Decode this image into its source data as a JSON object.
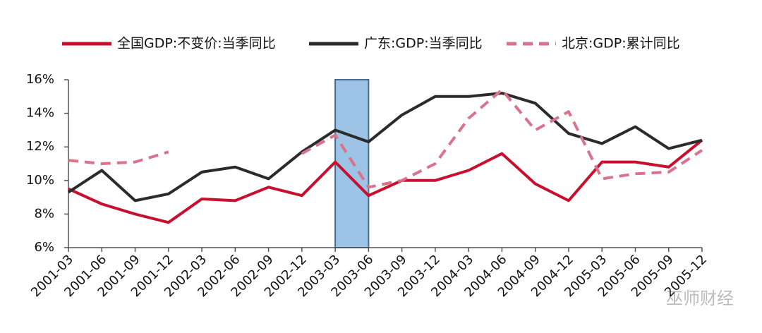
{
  "chart_data": {
    "type": "line",
    "categories": [
      "2001-03",
      "2001-06",
      "2001-09",
      "2001-12",
      "2002-03",
      "2002-06",
      "2002-09",
      "2002-12",
      "2003-03",
      "2003-06",
      "2003-09",
      "2003-12",
      "2004-03",
      "2004-06",
      "2004-09",
      "2004-12",
      "2005-03",
      "2005-06",
      "2005-09",
      "2005-12"
    ],
    "series": [
      {
        "name": "全国GDP:不变价:当季同比",
        "color": "#c8102e",
        "style": "solid",
        "values": [
          9.5,
          8.6,
          8.0,
          7.5,
          8.9,
          8.8,
          9.6,
          9.1,
          11.1,
          9.1,
          10.0,
          10.0,
          10.6,
          11.6,
          9.8,
          8.8,
          11.1,
          11.1,
          10.8,
          12.4
        ]
      },
      {
        "name": "广东:GDP:当季同比",
        "color": "#2b2b2b",
        "style": "solid",
        "values": [
          9.3,
          10.6,
          8.8,
          9.2,
          10.5,
          10.8,
          10.1,
          11.7,
          13.0,
          12.3,
          13.9,
          15.0,
          15.0,
          15.2,
          14.6,
          12.8,
          12.2,
          13.2,
          11.9,
          12.4
        ]
      },
      {
        "name": "北京:GDP:累计同比",
        "color": "#d9728a",
        "style": "dashed",
        "values": [
          11.2,
          11.0,
          11.1,
          11.7,
          null,
          null,
          null,
          11.6,
          12.7,
          9.6,
          10.0,
          11.0,
          13.7,
          15.4,
          13.0,
          14.1,
          10.1,
          10.4,
          10.5,
          11.8
        ]
      }
    ],
    "ylim": [
      6,
      16
    ],
    "yticks": [
      {
        "value": 6,
        "label": "6%"
      },
      {
        "value": 8,
        "label": "8%"
      },
      {
        "value": 10,
        "label": "10%"
      },
      {
        "value": 12,
        "label": "12%"
      },
      {
        "value": 14,
        "label": "14%"
      },
      {
        "value": 16,
        "label": "16%"
      }
    ],
    "shaded_range": {
      "from": "2003-03",
      "to": "2003-06",
      "color": "#9dc3e6"
    },
    "legend": "top",
    "grid": false,
    "watermark": "巫师财经"
  }
}
